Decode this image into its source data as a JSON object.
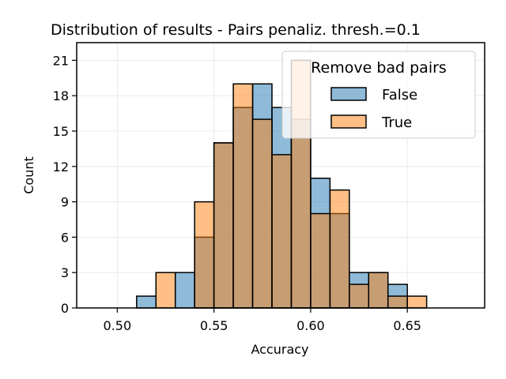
{
  "chart_data": {
    "type": "bar",
    "subtype": "overlapping-histogram",
    "title": "Distribution of results - Pairs penaliz. thresh.=0.1",
    "xlabel": "Accuracy",
    "ylabel": "Count",
    "xlim": [
      0.479,
      0.69
    ],
    "ylim": [
      0,
      22.5
    ],
    "x_ticks": [
      "0.50",
      "0.55",
      "0.60",
      "0.65"
    ],
    "x_tick_values": [
      0.5,
      0.55,
      0.6,
      0.65
    ],
    "y_ticks": [
      "0",
      "3",
      "6",
      "9",
      "12",
      "15",
      "18",
      "21"
    ],
    "y_tick_values": [
      0,
      3,
      6,
      9,
      12,
      15,
      18,
      21
    ],
    "grid": true,
    "bin_edges": [
      0.49,
      0.5,
      0.51,
      0.52,
      0.53,
      0.54,
      0.55,
      0.56,
      0.57,
      0.58,
      0.59,
      0.6,
      0.61,
      0.62,
      0.63,
      0.64,
      0.65,
      0.66,
      0.67,
      0.68
    ],
    "legend": {
      "title": "Remove bad pairs",
      "position": "top-right"
    },
    "series": [
      {
        "name": "False",
        "color": "#1f77b4",
        "values": [
          0,
          0,
          1,
          0,
          3,
          6,
          14,
          17,
          19,
          17,
          16,
          11,
          8,
          3,
          3,
          2,
          0,
          0,
          0
        ]
      },
      {
        "name": "True",
        "color": "#ff7f0e",
        "values": [
          0,
          0,
          0,
          3,
          0,
          9,
          14,
          19,
          16,
          13,
          21,
          8,
          10,
          2,
          3,
          1,
          1,
          0,
          0
        ]
      }
    ]
  }
}
